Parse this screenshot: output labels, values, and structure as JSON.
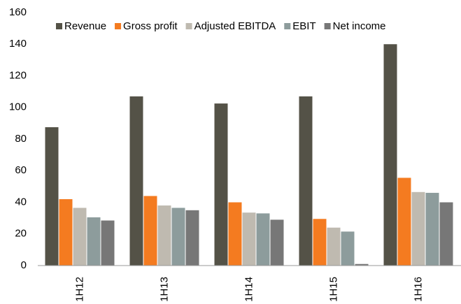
{
  "chart_data": {
    "type": "bar",
    "categories": [
      "1H12",
      "1H13",
      "1H14",
      "1H15",
      "1H16"
    ],
    "series": [
      {
        "name": "Revenue",
        "color": "#545247",
        "values": [
          87.5,
          107,
          102.5,
          107,
          140
        ]
      },
      {
        "name": "Gross profit",
        "color": "#f47b20",
        "values": [
          42,
          44,
          40,
          29.5,
          55.5
        ]
      },
      {
        "name": "Adjusted EBITDA",
        "color": "#bfbab0",
        "values": [
          36.5,
          38,
          33.5,
          24,
          46.5
        ]
      },
      {
        "name": "EBIT",
        "color": "#8d9c9c",
        "values": [
          30.5,
          36.5,
          33,
          21.5,
          46
        ]
      },
      {
        "name": "Net income",
        "color": "#777777",
        "values": [
          28.5,
          35,
          29,
          1,
          40
        ]
      }
    ],
    "ylim": [
      0,
      160
    ],
    "yticks": [
      0,
      20,
      40,
      60,
      80,
      100,
      120,
      140,
      160
    ],
    "grid": false,
    "legend": "top"
  }
}
